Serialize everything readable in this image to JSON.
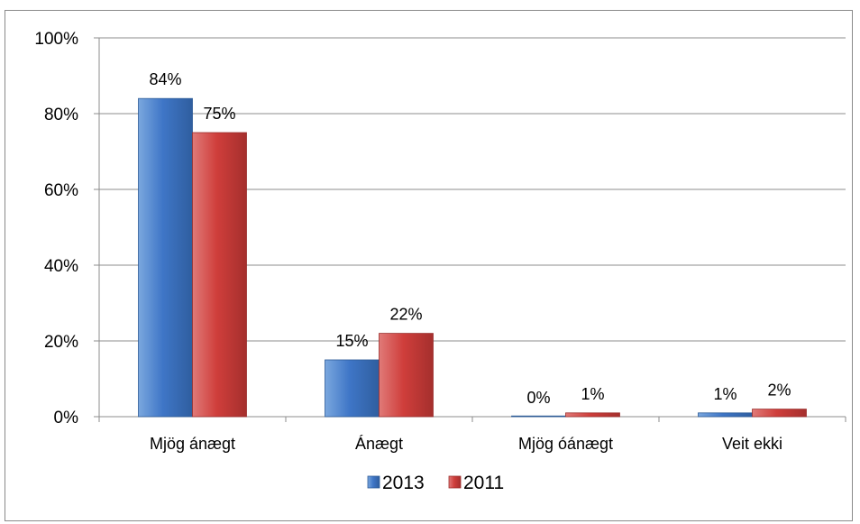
{
  "chart_data": {
    "type": "bar",
    "categories": [
      "Mjög ánægt",
      "Ánægt",
      "Mjög óánægt",
      "Veit ekki"
    ],
    "series": [
      {
        "name": "2013",
        "values": [
          84,
          15,
          0,
          1
        ],
        "labels": [
          "84%",
          "15%",
          "0%",
          "1%"
        ],
        "color": "#4f81bd"
      },
      {
        "name": "2011",
        "values": [
          75,
          22,
          1,
          2
        ],
        "labels": [
          "75%",
          "22%",
          "1%",
          "2%"
        ],
        "color": "#c0504d"
      }
    ],
    "ylim": [
      0,
      100
    ],
    "yticks": [
      0,
      20,
      40,
      60,
      80,
      100
    ],
    "ytick_labels": [
      "0%",
      "20%",
      "40%",
      "60%",
      "80%",
      "100%"
    ],
    "grid": true,
    "legend_position": "bottom"
  }
}
